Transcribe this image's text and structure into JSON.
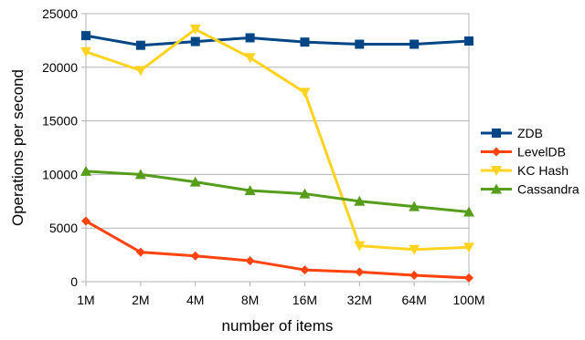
{
  "chart_data": {
    "type": "line",
    "title": "",
    "xlabel": "number of items",
    "ylabel": "Operations per second",
    "categories": [
      "1M",
      "2M",
      "4M",
      "8M",
      "16M",
      "32M",
      "64M",
      "100M"
    ],
    "ylim": [
      0,
      25000
    ],
    "yticks": [
      0,
      5000,
      10000,
      15000,
      20000,
      25000
    ],
    "grid": "horizontal",
    "legend_position": "right",
    "series": [
      {
        "name": "ZDB",
        "color": "#004586",
        "marker": "square",
        "values": [
          22950,
          22050,
          22400,
          22750,
          22350,
          22150,
          22150,
          22450
        ]
      },
      {
        "name": "LevelDB",
        "color": "#ff420e",
        "marker": "diamond",
        "values": [
          5650,
          2750,
          2400,
          1950,
          1100,
          900,
          600,
          350
        ]
      },
      {
        "name": "KC Hash",
        "color": "#ffd320",
        "marker": "triangle-down",
        "values": [
          21450,
          19700,
          23550,
          20900,
          17650,
          3350,
          3000,
          3200
        ]
      },
      {
        "name": "Cassandra",
        "color": "#579d1c",
        "marker": "triangle-up",
        "values": [
          10300,
          10000,
          9300,
          8500,
          8200,
          7500,
          7000,
          6500
        ]
      }
    ]
  }
}
